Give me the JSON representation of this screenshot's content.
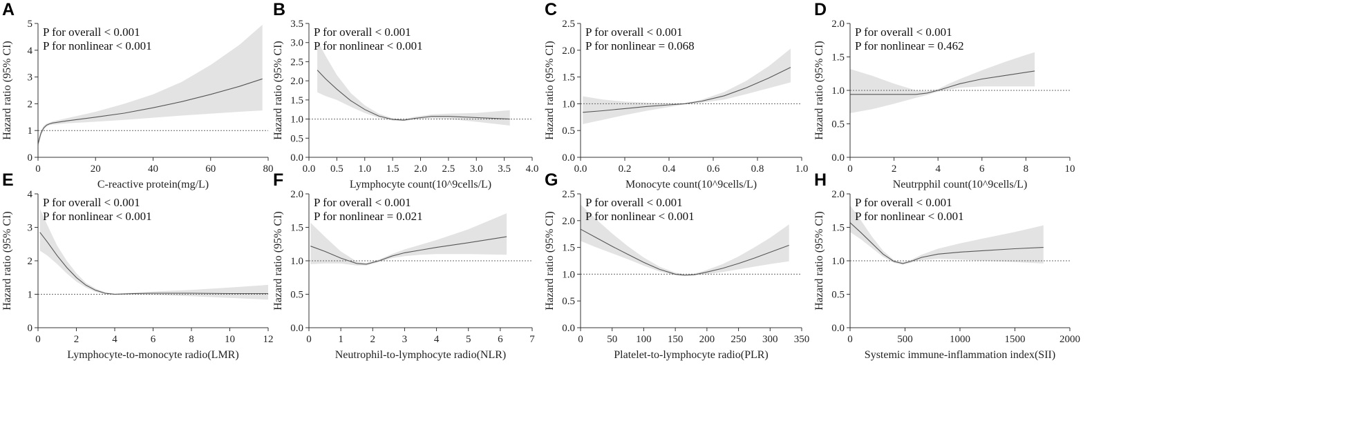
{
  "chart_data": [
    {
      "type": "line",
      "panel": "A",
      "xlabel": "C-reactive protein(mg/L)",
      "ylabel": "Hazard ratio (95% CI)",
      "xlim": [
        0,
        80
      ],
      "ylim": [
        0,
        5
      ],
      "xticks": [
        0,
        20,
        40,
        60,
        80
      ],
      "yticks": [
        0,
        1,
        2,
        3,
        4,
        5
      ],
      "xtick_labels": [
        "0",
        "20",
        "40",
        "60",
        "80"
      ],
      "ytick_labels": [
        "0",
        "1",
        "2",
        "3",
        "4",
        "5"
      ],
      "p_overall": "P for overall < 0.001",
      "p_nonlinear": "P for nonlinear < 0.001",
      "reference": 1,
      "series": [
        {
          "name": "Hazard ratio",
          "x": [
            0,
            1,
            2,
            3,
            4,
            5,
            10,
            20,
            30,
            40,
            50,
            60,
            70,
            78
          ],
          "y": [
            0.5,
            0.9,
            1.1,
            1.2,
            1.25,
            1.28,
            1.36,
            1.5,
            1.65,
            1.85,
            2.08,
            2.35,
            2.65,
            2.93
          ],
          "lower": [
            0.35,
            0.8,
            1.03,
            1.15,
            1.2,
            1.22,
            1.27,
            1.33,
            1.4,
            1.48,
            1.56,
            1.63,
            1.7,
            1.75
          ],
          "upper": [
            0.65,
            1.0,
            1.18,
            1.26,
            1.3,
            1.34,
            1.46,
            1.7,
            2.0,
            2.35,
            2.82,
            3.45,
            4.2,
            4.95
          ]
        }
      ]
    },
    {
      "type": "line",
      "panel": "B",
      "xlabel": "Lymphocyte count(10^9cells/L)",
      "ylabel": "Hazard ratio (95% CI)",
      "xlim": [
        0,
        4
      ],
      "ylim": [
        0,
        3.5
      ],
      "xticks": [
        0,
        0.5,
        1,
        1.5,
        2,
        2.5,
        3,
        3.5,
        4
      ],
      "yticks": [
        0,
        0.5,
        1,
        1.5,
        2,
        2.5,
        3,
        3.5
      ],
      "xtick_labels": [
        "0.0",
        "0.5",
        "1.0",
        "1.5",
        "2.0",
        "2.5",
        "3.0",
        "3.5",
        "4.0"
      ],
      "ytick_labels": [
        "0.0",
        "0.5",
        "1.0",
        "1.5",
        "2.0",
        "2.5",
        "3.0",
        "3.5"
      ],
      "p_overall": "P for overall < 0.001",
      "p_nonlinear": "P for nonlinear < 0.001",
      "reference": 1,
      "series": [
        {
          "name": "Hazard ratio",
          "x": [
            0.15,
            0.3,
            0.5,
            0.75,
            1.0,
            1.25,
            1.5,
            1.7,
            1.9,
            2.2,
            2.5,
            3.0,
            3.6
          ],
          "y": [
            2.28,
            2.05,
            1.78,
            1.48,
            1.25,
            1.08,
            0.99,
            0.97,
            1.02,
            1.07,
            1.07,
            1.04,
            1.0
          ],
          "lower": [
            1.7,
            1.6,
            1.5,
            1.32,
            1.16,
            1.03,
            0.96,
            0.95,
            0.99,
            1.02,
            1.0,
            0.93,
            0.83
          ],
          "upper": [
            3.05,
            2.65,
            2.15,
            1.68,
            1.36,
            1.14,
            1.02,
            1.0,
            1.06,
            1.12,
            1.14,
            1.16,
            1.23
          ]
        }
      ]
    },
    {
      "type": "line",
      "panel": "C",
      "xlabel": "Monocyte count(10^9cells/L)",
      "ylabel": "Hazard ratio (95% CI)",
      "xlim": [
        0,
        1
      ],
      "ylim": [
        0,
        2.5
      ],
      "xticks": [
        0,
        0.2,
        0.4,
        0.6,
        0.8,
        1
      ],
      "yticks": [
        0,
        0.5,
        1,
        1.5,
        2,
        2.5
      ],
      "xtick_labels": [
        "0.0",
        "0.2",
        "0.4",
        "0.6",
        "0.8",
        "1.0"
      ],
      "ytick_labels": [
        "0.0",
        "0.5",
        "1.0",
        "1.5",
        "2.0",
        "2.5"
      ],
      "p_overall": "P for overall < 0.001",
      "p_nonlinear": "P for nonlinear = 0.068",
      "reference": 1,
      "series": [
        {
          "name": "Hazard ratio",
          "x": [
            0.01,
            0.1,
            0.2,
            0.3,
            0.4,
            0.47,
            0.55,
            0.65,
            0.75,
            0.85,
            0.95
          ],
          "y": [
            0.84,
            0.87,
            0.91,
            0.95,
            0.98,
            1.0,
            1.05,
            1.15,
            1.3,
            1.48,
            1.68
          ],
          "lower": [
            0.62,
            0.7,
            0.79,
            0.87,
            0.94,
            0.99,
            1.02,
            1.08,
            1.18,
            1.29,
            1.4
          ],
          "upper": [
            1.14,
            1.08,
            1.04,
            1.02,
            1.01,
            1.01,
            1.08,
            1.22,
            1.43,
            1.7,
            2.03
          ]
        }
      ]
    },
    {
      "type": "line",
      "panel": "D",
      "xlabel": "Neutrpphil count(10^9cells/L)",
      "ylabel": "Hazard ratio (95% CI)",
      "xlim": [
        0,
        10
      ],
      "ylim": [
        0,
        2
      ],
      "xticks": [
        0,
        2,
        4,
        6,
        8,
        10
      ],
      "yticks": [
        0,
        0.5,
        1,
        1.5,
        2
      ],
      "xtick_labels": [
        "0",
        "2",
        "4",
        "6",
        "8",
        "10"
      ],
      "ytick_labels": [
        "0.0",
        "0.5",
        "1.0",
        "1.5",
        "2.0"
      ],
      "p_overall": "P for overall < 0.001",
      "p_nonlinear": "P for nonlinear = 0.462",
      "reference": 1,
      "series": [
        {
          "name": "Hazard ratio",
          "x": [
            0,
            1,
            2,
            3,
            3.5,
            4,
            4.5,
            5,
            6,
            7,
            8,
            8.4
          ],
          "y": [
            0.94,
            0.94,
            0.94,
            0.94,
            0.96,
            1.0,
            1.05,
            1.1,
            1.17,
            1.22,
            1.27,
            1.29
          ],
          "lower": [
            0.66,
            0.72,
            0.8,
            0.89,
            0.93,
            0.98,
            1.01,
            1.04,
            1.06,
            1.06,
            1.06,
            1.06
          ],
          "upper": [
            1.32,
            1.22,
            1.1,
            1.0,
            0.99,
            1.02,
            1.1,
            1.17,
            1.3,
            1.42,
            1.53,
            1.57
          ]
        }
      ]
    },
    {
      "type": "line",
      "panel": "E",
      "xlabel": "Lymphocyte-to-monocyte radio(LMR)",
      "ylabel": "Hazard ratio (95% CI)",
      "xlim": [
        0,
        12
      ],
      "ylim": [
        0,
        4
      ],
      "xticks": [
        0,
        2,
        4,
        6,
        8,
        10,
        12
      ],
      "yticks": [
        0,
        1,
        2,
        3,
        4
      ],
      "xtick_labels": [
        "0",
        "2",
        "4",
        "6",
        "8",
        "10",
        "12"
      ],
      "ytick_labels": [
        "0",
        "1",
        "2",
        "3",
        "4"
      ],
      "p_overall": "P for overall < 0.001",
      "p_nonlinear": "P for nonlinear < 0.001",
      "reference": 1,
      "series": [
        {
          "name": "Hazard ratio",
          "x": [
            0.1,
            0.5,
            1,
            1.5,
            2,
            2.5,
            3,
            3.5,
            4,
            5,
            6,
            8,
            10,
            12
          ],
          "y": [
            2.85,
            2.55,
            2.15,
            1.8,
            1.5,
            1.27,
            1.12,
            1.03,
            1.0,
            1.02,
            1.03,
            1.03,
            1.02,
            1.02
          ],
          "lower": [
            2.3,
            2.15,
            1.9,
            1.62,
            1.38,
            1.2,
            1.07,
            1.0,
            0.98,
            0.99,
            0.98,
            0.94,
            0.89,
            0.84
          ],
          "upper": [
            3.55,
            3.05,
            2.45,
            2.0,
            1.63,
            1.34,
            1.17,
            1.06,
            1.02,
            1.05,
            1.08,
            1.13,
            1.2,
            1.28
          ]
        }
      ]
    },
    {
      "type": "line",
      "panel": "F",
      "xlabel": "Neutrophil-to-lymphocyte radio(NLR)",
      "ylabel": "Hazard ratio (95% CI)",
      "xlim": [
        0,
        7
      ],
      "ylim": [
        0,
        2
      ],
      "xticks": [
        0,
        1,
        2,
        3,
        4,
        5,
        6,
        7
      ],
      "yticks": [
        0,
        0.5,
        1,
        1.5,
        2
      ],
      "xtick_labels": [
        "0",
        "1",
        "2",
        "3",
        "4",
        "5",
        "6",
        "7"
      ],
      "ytick_labels": [
        "0.0",
        "0.5",
        "1.0",
        "1.5",
        "2.0"
      ],
      "p_overall": "P for overall < 0.001",
      "p_nonlinear": "P for nonlinear = 0.021",
      "reference": 1,
      "series": [
        {
          "name": "Hazard ratio",
          "x": [
            0.05,
            0.5,
            1,
            1.5,
            1.8,
            2.2,
            2.6,
            3,
            3.5,
            4,
            5,
            6.2
          ],
          "y": [
            1.22,
            1.14,
            1.04,
            0.96,
            0.95,
            1.0,
            1.07,
            1.12,
            1.16,
            1.2,
            1.27,
            1.36
          ],
          "lower": [
            0.95,
            0.96,
            0.96,
            0.93,
            0.93,
            0.98,
            1.04,
            1.07,
            1.09,
            1.1,
            1.1,
            1.09
          ],
          "upper": [
            1.57,
            1.36,
            1.14,
            0.99,
            0.97,
            1.02,
            1.1,
            1.17,
            1.24,
            1.31,
            1.47,
            1.71
          ]
        }
      ]
    },
    {
      "type": "line",
      "panel": "G",
      "xlabel": "Platelet-to-lymphocyte radio(PLR)",
      "ylabel": "Hazard ratio (95% CI)",
      "xlim": [
        0,
        350
      ],
      "ylim": [
        0,
        2.5
      ],
      "xticks": [
        0,
        50,
        100,
        150,
        200,
        250,
        300,
        350
      ],
      "yticks": [
        0,
        0.5,
        1,
        1.5,
        2,
        2.5
      ],
      "xtick_labels": [
        "0",
        "50",
        "100",
        "150",
        "200",
        "250",
        "300",
        "350"
      ],
      "ytick_labels": [
        "0.0",
        "0.5",
        "1.0",
        "1.5",
        "2.0",
        "2.5"
      ],
      "p_overall": "P for overall < 0.001",
      "p_nonlinear": "P for nonlinear < 0.001",
      "reference": 1,
      "series": [
        {
          "name": "Hazard ratio",
          "x": [
            0,
            25,
            50,
            75,
            100,
            125,
            150,
            165,
            180,
            200,
            225,
            250,
            275,
            300,
            330
          ],
          "y": [
            1.84,
            1.68,
            1.52,
            1.37,
            1.22,
            1.09,
            1.0,
            0.98,
            0.99,
            1.04,
            1.11,
            1.2,
            1.3,
            1.41,
            1.54
          ],
          "lower": [
            1.62,
            1.5,
            1.39,
            1.28,
            1.16,
            1.05,
            0.98,
            0.97,
            0.98,
            1.0,
            1.04,
            1.09,
            1.14,
            1.19,
            1.24
          ],
          "upper": [
            2.3,
            2.02,
            1.76,
            1.52,
            1.31,
            1.14,
            1.03,
            1.0,
            1.01,
            1.08,
            1.19,
            1.33,
            1.5,
            1.68,
            1.93
          ]
        }
      ]
    },
    {
      "type": "line",
      "panel": "H",
      "xlabel": "Systemic immune-inflammation index(SII)",
      "ylabel": "Hazard ratio (95% CI)",
      "xlim": [
        0,
        2000
      ],
      "ylim": [
        0,
        2
      ],
      "xticks": [
        0,
        500,
        1000,
        1500,
        2000
      ],
      "yticks": [
        0,
        0.5,
        1,
        1.5,
        2
      ],
      "xtick_labels": [
        "0",
        "500",
        "1000",
        "1500",
        "2000"
      ],
      "ytick_labels": [
        "0.0",
        "0.5",
        "1.0",
        "1.5",
        "2.0"
      ],
      "p_overall": "P for overall < 0.001",
      "p_nonlinear": "P for nonlinear < 0.001",
      "reference": 1,
      "series": [
        {
          "name": "Hazard ratio",
          "x": [
            0,
            100,
            200,
            300,
            400,
            480,
            550,
            650,
            800,
            1000,
            1200,
            1500,
            1760
          ],
          "y": [
            1.57,
            1.42,
            1.26,
            1.1,
            0.99,
            0.96,
            0.99,
            1.05,
            1.1,
            1.13,
            1.15,
            1.18,
            1.2
          ],
          "lower": [
            1.43,
            1.32,
            1.19,
            1.06,
            0.97,
            0.94,
            0.97,
            1.01,
            1.03,
            1.02,
            1.0,
            0.98,
            0.96
          ],
          "upper": [
            1.83,
            1.6,
            1.36,
            1.15,
            1.01,
            0.98,
            1.01,
            1.09,
            1.18,
            1.26,
            1.33,
            1.43,
            1.53
          ]
        }
      ]
    }
  ]
}
